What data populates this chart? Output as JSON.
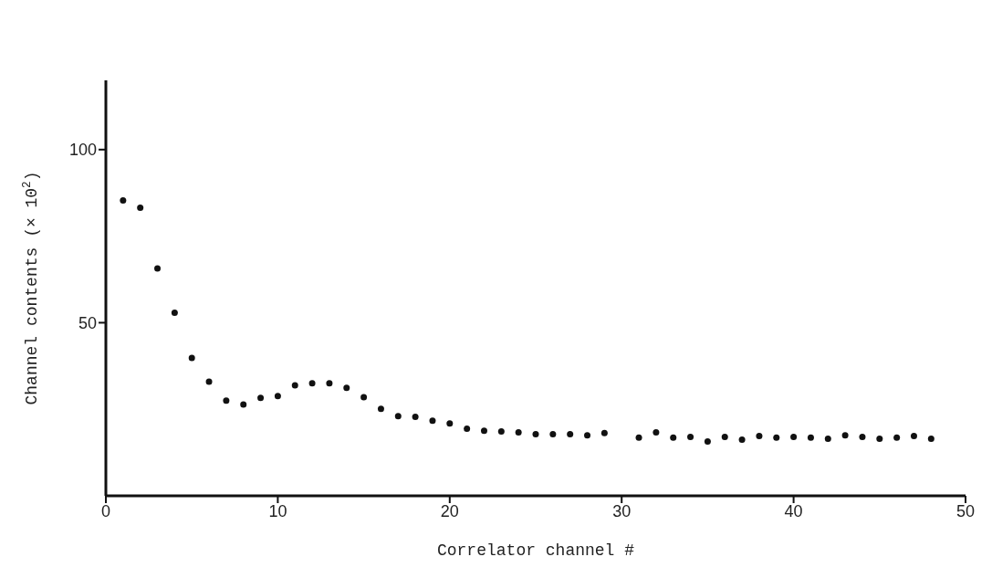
{
  "chart_data": {
    "type": "scatter",
    "xlabel": "Correlator channel #",
    "ylabel": "Channel contents (× 10$^{2}$)",
    "x": [
      1,
      2,
      3,
      4,
      5,
      6,
      7,
      8,
      9,
      10,
      11,
      12,
      13,
      14,
      15,
      16,
      17,
      18,
      19,
      20,
      21,
      22,
      23,
      24,
      25,
      26,
      27,
      28,
      29,
      31,
      32,
      33,
      34,
      35,
      36,
      37,
      38,
      39,
      40,
      41,
      42,
      43,
      44,
      45,
      46,
      47,
      48
    ],
    "series": [
      {
        "color": "#111111",
        "values": [
          85.3,
          83.2,
          65.7,
          52.9,
          39.8,
          33.0,
          27.5,
          26.4,
          28.3,
          28.8,
          31.9,
          32.5,
          32.5,
          31.2,
          28.5,
          25.1,
          23.0,
          22.8,
          21.7,
          20.9,
          19.4,
          18.8,
          18.6,
          18.3,
          17.8,
          17.8,
          17.8,
          17.5,
          18.1,
          16.8,
          18.3,
          16.8,
          17.0,
          15.7,
          17.0,
          16.2,
          17.3,
          16.8,
          17.0,
          16.8,
          16.5,
          17.5,
          17.0,
          16.5,
          16.8,
          17.3,
          16.5
        ]
      }
    ],
    "xlim": [
      0,
      50
    ],
    "xticks": [
      0,
      10,
      20,
      30,
      40,
      50
    ],
    "ylim": [
      0,
      120
    ],
    "yticks": [
      50,
      100
    ],
    "marker": "circle",
    "grid": false,
    "legend": false
  }
}
